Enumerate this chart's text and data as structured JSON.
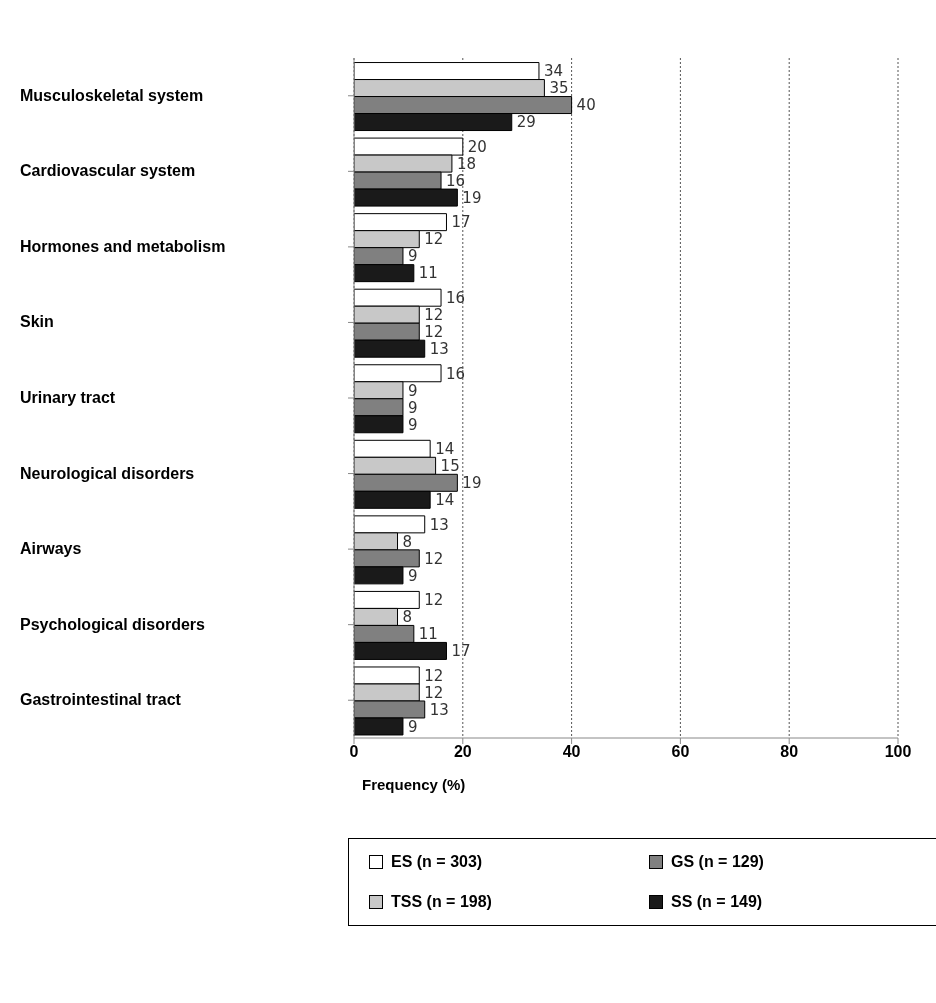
{
  "chart_data": {
    "type": "bar",
    "orientation": "horizontal",
    "categories": [
      "Musculoskeletal system",
      "Cardiovascular system",
      "Hormones and metabolism",
      "Skin",
      "Urinary tract",
      "Neurological disorders",
      "Airways",
      "Psychological disorders",
      "Gastrointestinal tract"
    ],
    "series": [
      {
        "name": "ES (n = 303)",
        "color": "#ffffff",
        "values": [
          34,
          20,
          17,
          16,
          16,
          14,
          13,
          12,
          12
        ]
      },
      {
        "name": "TSS (n = 198)",
        "color": "#c8c8c8",
        "values": [
          35,
          18,
          12,
          12,
          9,
          15,
          8,
          8,
          12
        ]
      },
      {
        "name": "GS (n = 129)",
        "color": "#808080",
        "values": [
          40,
          16,
          9,
          12,
          9,
          19,
          12,
          11,
          13
        ]
      },
      {
        "name": "SS (n = 149)",
        "color": "#1a1a1a",
        "values": [
          29,
          19,
          11,
          13,
          9,
          14,
          9,
          17,
          9
        ]
      }
    ],
    "xlabel": "Frequency (%)",
    "xlim": [
      0,
      100
    ],
    "xticks": [
      0,
      20,
      40,
      60,
      80,
      100
    ],
    "grid": "x",
    "legend": "bottom",
    "data_labels": true
  }
}
